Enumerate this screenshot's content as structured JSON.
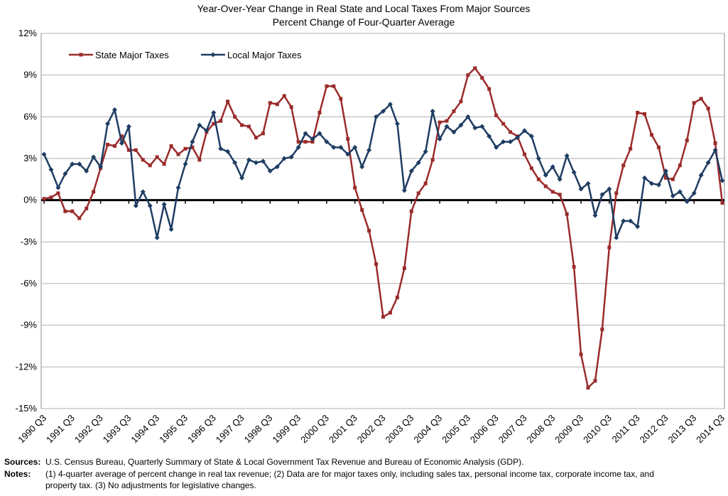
{
  "chart_data": {
    "type": "line",
    "title": "Year-Over-Year Change in Real State and Local Taxes From Major Sources",
    "subtitle": "Percent Change of Four-Quarter Average",
    "categories": [
      "1990 Q3",
      null,
      null,
      null,
      "1991 Q3",
      null,
      null,
      null,
      "1992 Q3",
      null,
      null,
      null,
      "1993 Q3",
      null,
      null,
      null,
      "1994 Q3",
      null,
      null,
      null,
      "1995 Q3",
      null,
      null,
      null,
      "1996 Q3",
      null,
      null,
      null,
      "1997 Q3",
      null,
      null,
      null,
      "1998 Q3",
      null,
      null,
      null,
      "1999 Q3",
      null,
      null,
      null,
      "2000 Q3",
      null,
      null,
      null,
      "2001 Q3",
      null,
      null,
      null,
      "2002 Q3",
      null,
      null,
      null,
      "2003 Q3",
      null,
      null,
      null,
      "2004 Q3",
      null,
      null,
      null,
      "2005 Q3",
      null,
      null,
      null,
      "2006 Q3",
      null,
      null,
      null,
      "2007 Q3",
      null,
      null,
      null,
      "2008 Q3",
      null,
      null,
      null,
      "2009 Q3",
      null,
      null,
      null,
      "2010 Q3",
      null,
      null,
      null,
      "2011 Q3",
      null,
      null,
      null,
      "2012 Q3",
      null,
      null,
      null,
      "2013 Q3",
      null,
      null,
      null,
      "2014 Q3"
    ],
    "series": [
      {
        "name": "State Major Taxes",
        "color": "#9b2b2b",
        "marker": "square",
        "values": [
          0.1,
          0.2,
          0.5,
          -0.8,
          -0.8,
          -1.3,
          -0.6,
          0.6,
          2.3,
          4.0,
          3.9,
          4.6,
          3.6,
          3.6,
          2.9,
          2.5,
          3.1,
          2.6,
          3.9,
          3.3,
          3.7,
          3.8,
          2.9,
          4.9,
          5.5,
          5.7,
          7.1,
          6.0,
          5.4,
          5.3,
          4.5,
          4.8,
          7.0,
          6.9,
          7.5,
          6.7,
          4.2,
          4.2,
          4.2,
          6.3,
          8.2,
          8.2,
          7.3,
          4.4,
          0.9,
          -0.7,
          -2.2,
          -4.6,
          -8.4,
          -8.1,
          -7.0,
          -4.9,
          -0.8,
          0.5,
          1.2,
          2.9,
          5.6,
          5.7,
          6.4,
          7.1,
          9.0,
          9.5,
          8.8,
          8.0,
          6.1,
          5.5,
          4.9,
          4.6,
          3.3,
          2.3,
          1.5,
          1.0,
          0.6,
          0.4,
          -1.0,
          -4.8,
          -11.1,
          -13.5,
          -13.0,
          -9.3,
          -3.4,
          0.5,
          2.5,
          3.7,
          6.3,
          6.2,
          4.7,
          3.8,
          1.6,
          1.5,
          2.5,
          4.3,
          7.0,
          7.3,
          6.6,
          4.1,
          -0.2
        ]
      },
      {
        "name": "Local Major Taxes",
        "color": "#1f3d63",
        "marker": "diamond",
        "values": [
          3.3,
          2.2,
          0.9,
          1.9,
          2.6,
          2.6,
          2.1,
          3.1,
          2.4,
          5.5,
          6.5,
          4.1,
          5.3,
          -0.4,
          0.6,
          -0.4,
          -2.7,
          -0.3,
          -2.1,
          0.9,
          2.6,
          4.2,
          5.4,
          5.0,
          6.3,
          3.7,
          3.5,
          2.7,
          1.6,
          2.9,
          2.7,
          2.8,
          2.1,
          2.4,
          3.0,
          3.1,
          3.8,
          4.8,
          4.4,
          4.8,
          4.2,
          3.8,
          3.8,
          3.3,
          3.8,
          2.4,
          3.6,
          6.0,
          6.4,
          6.9,
          5.5,
          0.7,
          2.1,
          2.7,
          3.5,
          6.4,
          4.4,
          5.3,
          4.9,
          5.4,
          6.0,
          5.2,
          5.3,
          4.6,
          3.8,
          4.2,
          4.2,
          4.5,
          5.0,
          4.6,
          3.0,
          1.8,
          2.4,
          1.5,
          3.2,
          2.0,
          0.8,
          1.2,
          -1.1,
          0.4,
          0.8,
          -2.7,
          -1.5,
          -1.5,
          -1.9,
          1.6,
          1.2,
          1.1,
          2.1,
          0.3,
          0.6,
          -0.1,
          0.5,
          1.8,
          2.7,
          3.6,
          1.4
        ]
      }
    ],
    "ylim": [
      -15,
      12
    ],
    "yticks": [
      {
        "value": -15,
        "label": "-15%"
      },
      {
        "value": -12,
        "label": "-12%"
      },
      {
        "value": -9,
        "label": "-9%"
      },
      {
        "value": -6,
        "label": "-6%"
      },
      {
        "value": -3,
        "label": "-3%"
      },
      {
        "value": 0,
        "label": "0%"
      },
      {
        "value": 3,
        "label": "3%"
      },
      {
        "value": 6,
        "label": "6%"
      },
      {
        "value": 9,
        "label": "9%"
      },
      {
        "value": 12,
        "label": "12%"
      }
    ],
    "grid": true,
    "legend": "top-left",
    "sources_label": "Sources:",
    "sources": "U.S. Census Bureau, Quarterly Summary of State & Local Government Tax Revenue and Bureau of Economic Analysis (GDP).",
    "notes_label": "Notes:",
    "notes": "(1) 4-quarter average of percent change in real tax revenue; (2) Data are for major taxes only, including sales tax, personal income tax, corporate income tax, and property tax. (3) No adjustments for legislative changes."
  }
}
